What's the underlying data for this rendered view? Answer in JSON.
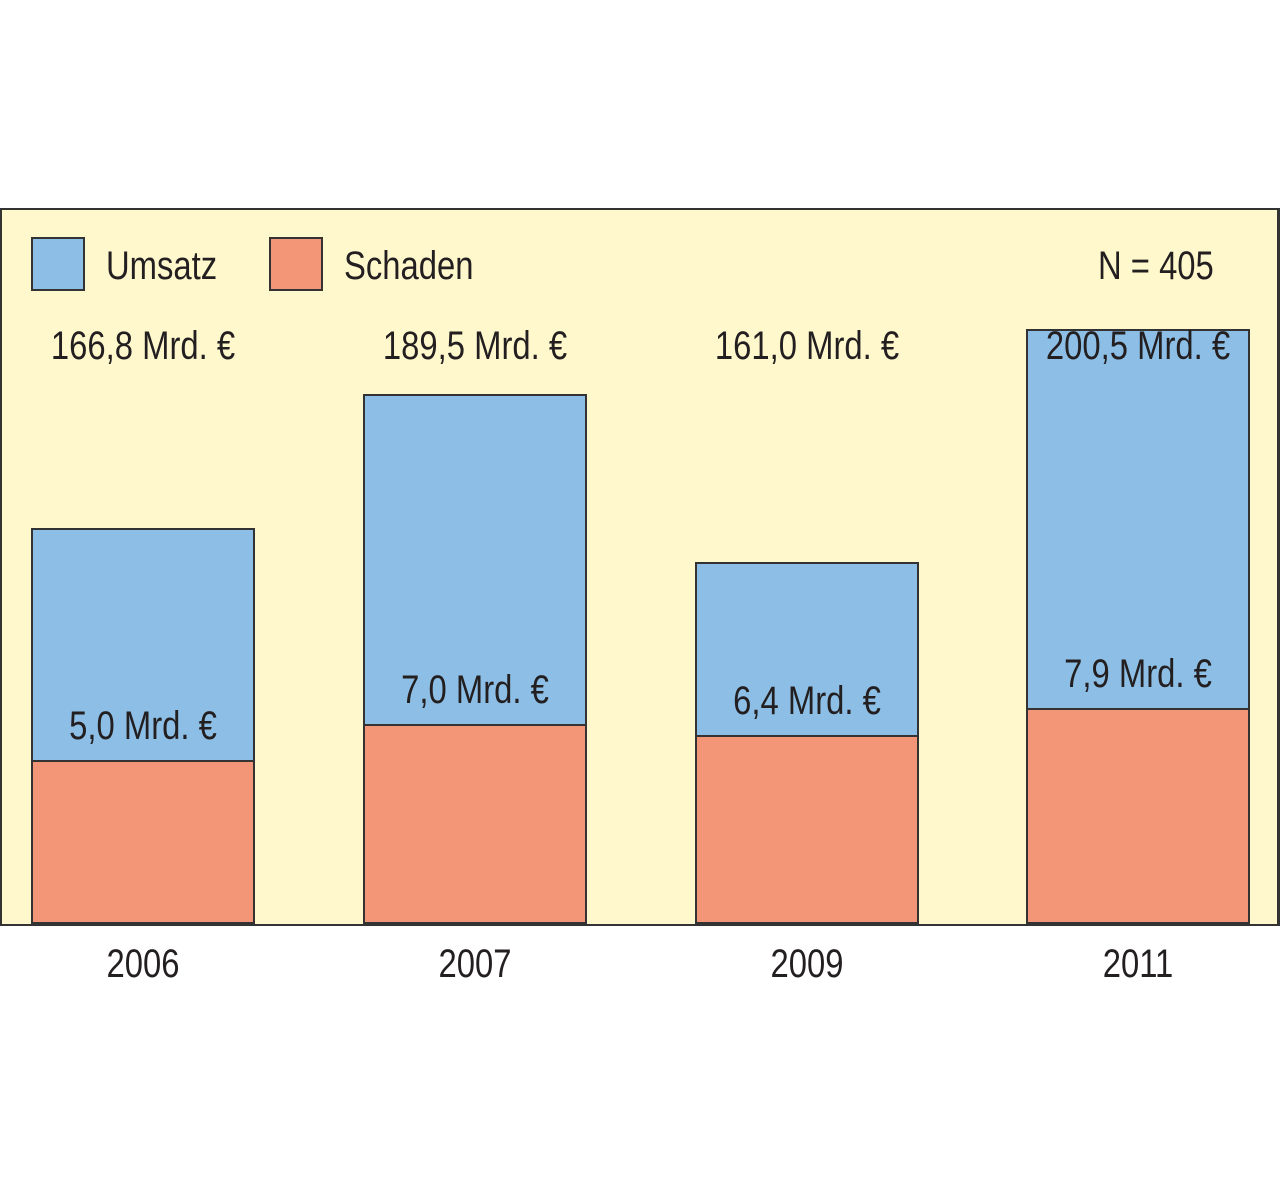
{
  "chart_data": {
    "type": "bar",
    "stacked": true,
    "categories": [
      "2006",
      "2007",
      "2009",
      "2011"
    ],
    "series": [
      {
        "name": "Umsatz",
        "values": [
          166.8,
          189.5,
          161.0,
          200.5
        ],
        "labels": [
          "166,8 Mrd. €",
          "189,5 Mrd. €",
          "161,0 Mrd. €",
          "200,5 Mrd. €"
        ],
        "color": "#8DBFE6"
      },
      {
        "name": "Schaden",
        "values": [
          5.0,
          7.0,
          6.4,
          7.9
        ],
        "labels": [
          "5,0 Mrd. €",
          "7,0 Mrd. €",
          "6,4 Mrd. €",
          "7,9 Mrd. €"
        ],
        "color": "#F29677"
      }
    ],
    "annotation": "N = 405",
    "legend_position": "top-left",
    "background": "#FFF8CD"
  }
}
